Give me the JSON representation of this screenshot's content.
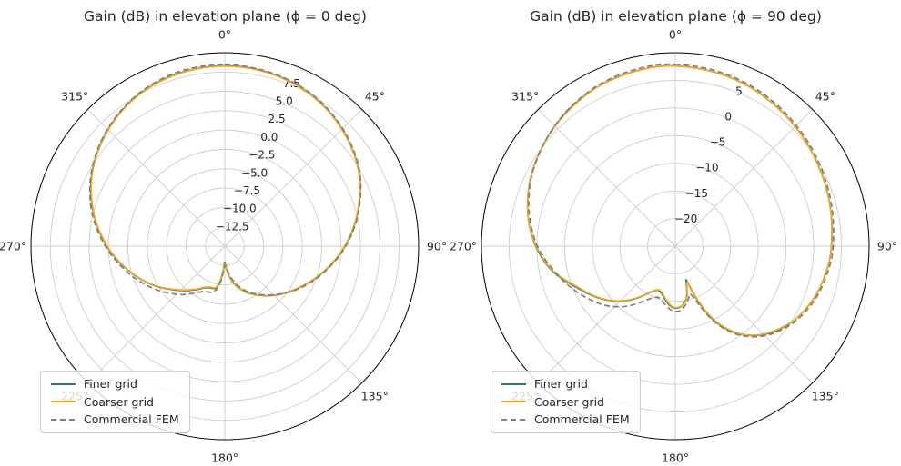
{
  "chart_data": [
    {
      "type": "line",
      "projection": "polar",
      "title": "Gain (dB) in elevation plane (ϕ = 0 deg)",
      "theta_zero": "top",
      "theta_direction": "clockwise",
      "theta_tick_labels": [
        "0°",
        "45°",
        "90°",
        "135°",
        "180°",
        "225°",
        "270°",
        "315°"
      ],
      "r_min": -15,
      "r_max": 10,
      "r_ticks": [
        7.5,
        5.0,
        2.5,
        0.0,
        -2.5,
        -5.0,
        -7.5,
        -10.0,
        -12.5
      ],
      "r_tick_labels": [
        "7.5",
        "5.0",
        "2.5",
        "0.0",
        "−2.5",
        "−5.0",
        "−7.5",
        "−10.0",
        "−12.5"
      ],
      "r_label_angle_deg": 22.5,
      "grid_color": "#cccccc",
      "spine_color": "#000000",
      "legend_position": "lower left",
      "series": [
        {
          "name": "Finer grid",
          "color": "#2f7d63",
          "dash": null,
          "points": [
            [
              0,
              8.3
            ],
            [
              15,
              8.1
            ],
            [
              30,
              7.5
            ],
            [
              45,
              6.4
            ],
            [
              60,
              4.9
            ],
            [
              75,
              2.8
            ],
            [
              90,
              0.5
            ],
            [
              105,
              -1.9
            ],
            [
              120,
              -4.1
            ],
            [
              135,
              -6.0
            ],
            [
              150,
              -7.8
            ],
            [
              160,
              -9.1
            ],
            [
              168,
              -10.3
            ],
            [
              174,
              -11.6
            ],
            [
              178,
              -12.5
            ],
            [
              181,
              -12.9
            ],
            [
              184,
              -11.7
            ],
            [
              188,
              -10.2
            ],
            [
              193,
              -9.4
            ],
            [
              199,
              -9.3
            ],
            [
              206,
              -9.0
            ],
            [
              214,
              -8.2
            ],
            [
              225,
              -6.9
            ],
            [
              240,
              -4.7
            ],
            [
              255,
              -2.3
            ],
            [
              270,
              0.2
            ],
            [
              285,
              2.6
            ],
            [
              300,
              4.7
            ],
            [
              315,
              6.3
            ],
            [
              330,
              7.5
            ],
            [
              345,
              8.1
            ]
          ]
        },
        {
          "name": "Coarser grid",
          "color": "#f5a623",
          "dash": null,
          "points": [
            [
              0,
              8.25
            ],
            [
              15,
              8.05
            ],
            [
              30,
              7.45
            ],
            [
              45,
              6.35
            ],
            [
              60,
              4.85
            ],
            [
              75,
              2.75
            ],
            [
              90,
              0.45
            ],
            [
              105,
              -1.95
            ],
            [
              120,
              -4.15
            ],
            [
              135,
              -6.05
            ],
            [
              150,
              -7.85
            ],
            [
              160,
              -9.15
            ],
            [
              168,
              -10.4
            ],
            [
              174,
              -11.7
            ],
            [
              178,
              -12.6
            ],
            [
              181,
              -12.7
            ],
            [
              184,
              -11.9
            ],
            [
              188,
              -10.4
            ],
            [
              193,
              -9.5
            ],
            [
              199,
              -9.4
            ],
            [
              206,
              -9.1
            ],
            [
              214,
              -8.3
            ],
            [
              225,
              -7.0
            ],
            [
              240,
              -4.75
            ],
            [
              255,
              -2.35
            ],
            [
              270,
              0.15
            ],
            [
              285,
              2.55
            ],
            [
              300,
              4.65
            ],
            [
              315,
              6.25
            ],
            [
              330,
              7.45
            ],
            [
              345,
              8.05
            ]
          ]
        },
        {
          "name": "Commercial FEM",
          "color": "#7f7f7f",
          "dash": [
            6,
            3.5
          ],
          "points": [
            [
              0,
              8.45
            ],
            [
              15,
              8.2
            ],
            [
              30,
              7.6
            ],
            [
              45,
              6.5
            ],
            [
              60,
              5.0
            ],
            [
              75,
              2.9
            ],
            [
              90,
              0.6
            ],
            [
              105,
              -1.8
            ],
            [
              120,
              -4.0
            ],
            [
              135,
              -6.1
            ],
            [
              150,
              -8.0
            ],
            [
              160,
              -9.4
            ],
            [
              168,
              -10.7
            ],
            [
              174,
              -11.9
            ],
            [
              179,
              -12.6
            ],
            [
              183,
              -11.7
            ],
            [
              188,
              -9.9
            ],
            [
              194,
              -8.9
            ],
            [
              200,
              -8.7
            ],
            [
              207,
              -8.4
            ],
            [
              215,
              -7.5
            ],
            [
              225,
              -6.2
            ],
            [
              240,
              -4.2
            ],
            [
              255,
              -2.0
            ],
            [
              270,
              0.4
            ],
            [
              285,
              2.8
            ],
            [
              300,
              4.8
            ],
            [
              315,
              6.4
            ],
            [
              330,
              7.6
            ],
            [
              345,
              8.3
            ]
          ]
        }
      ]
    },
    {
      "type": "line",
      "projection": "polar",
      "title": "Gain (dB) in elevation plane (ϕ = 90 deg)",
      "theta_zero": "top",
      "theta_direction": "clockwise",
      "theta_tick_labels": [
        "0°",
        "45°",
        "90°",
        "135°",
        "180°",
        "225°",
        "270°",
        "315°"
      ],
      "r_min": -25,
      "r_max": 10,
      "r_ticks": [
        5,
        0,
        -5,
        -10,
        -15,
        -20
      ],
      "r_tick_labels": [
        "5",
        "0",
        "−5",
        "−10",
        "−15",
        "−20"
      ],
      "r_label_angle_deg": 22.5,
      "grid_color": "#cccccc",
      "spine_color": "#000000",
      "legend_position": "lower left",
      "series": [
        {
          "name": "Finer grid",
          "color": "#2f7d63",
          "dash": null,
          "points": [
            [
              0,
              7.6
            ],
            [
              15,
              7.2
            ],
            [
              30,
              6.5
            ],
            [
              45,
              5.6
            ],
            [
              60,
              4.7
            ],
            [
              75,
              3.9
            ],
            [
              90,
              3.2
            ],
            [
              100,
              2.6
            ],
            [
              110,
              1.8
            ],
            [
              120,
              0.6
            ],
            [
              128,
              -0.8
            ],
            [
              135,
              -2.4
            ],
            [
              142,
              -4.6
            ],
            [
              148,
              -7.2
            ],
            [
              153,
              -10.2
            ],
            [
              157,
              -13.6
            ],
            [
              160,
              -16.8
            ],
            [
              162,
              -18.6
            ],
            [
              164,
              -17.6
            ],
            [
              167,
              -15.8
            ],
            [
              171,
              -14.6
            ],
            [
              176,
              -13.9
            ],
            [
              181,
              -13.8
            ],
            [
              186,
              -14.3
            ],
            [
              192,
              -15.4
            ],
            [
              197,
              -16.2
            ],
            [
              202,
              -16.4
            ],
            [
              208,
              -15.6
            ],
            [
              214,
              -14.0
            ],
            [
              221,
              -12.0
            ],
            [
              229,
              -9.9
            ],
            [
              238,
              -7.8
            ],
            [
              248,
              -5.5
            ],
            [
              258,
              -2.5
            ],
            [
              268,
              -0.2
            ],
            [
              278,
              1.6
            ],
            [
              288,
              3.0
            ],
            [
              298,
              4.2
            ],
            [
              310,
              5.3
            ],
            [
              322,
              6.3
            ],
            [
              335,
              7.1
            ],
            [
              348,
              7.5
            ]
          ]
        },
        {
          "name": "Coarser grid",
          "color": "#f5a623",
          "dash": null,
          "points": [
            [
              0,
              7.6
            ],
            [
              15,
              7.2
            ],
            [
              30,
              6.5
            ],
            [
              45,
              5.6
            ],
            [
              60,
              4.7
            ],
            [
              75,
              3.9
            ],
            [
              90,
              3.2
            ],
            [
              100,
              2.6
            ],
            [
              110,
              1.8
            ],
            [
              120,
              0.6
            ],
            [
              128,
              -0.9
            ],
            [
              135,
              -2.5
            ],
            [
              142,
              -4.7
            ],
            [
              148,
              -7.4
            ],
            [
              153,
              -10.5
            ],
            [
              157,
              -14.0
            ],
            [
              160,
              -17.2
            ],
            [
              162,
              -18.2
            ],
            [
              164,
              -17.3
            ],
            [
              167,
              -15.6
            ],
            [
              171,
              -14.5
            ],
            [
              176,
              -14.0
            ],
            [
              181,
              -13.9
            ],
            [
              186,
              -14.5
            ],
            [
              192,
              -15.6
            ],
            [
              197,
              -16.4
            ],
            [
              202,
              -16.5
            ],
            [
              208,
              -15.7
            ],
            [
              214,
              -14.1
            ],
            [
              221,
              -12.1
            ],
            [
              229,
              -10.0
            ],
            [
              238,
              -7.9
            ],
            [
              248,
              -5.7
            ],
            [
              258,
              -2.6
            ],
            [
              268,
              -0.3
            ],
            [
              278,
              1.6
            ],
            [
              288,
              3.0
            ],
            [
              298,
              4.2
            ],
            [
              310,
              5.3
            ],
            [
              322,
              6.2
            ],
            [
              335,
              7.1
            ],
            [
              348,
              7.5
            ]
          ]
        },
        {
          "name": "Commercial FEM",
          "color": "#7f7f7f",
          "dash": [
            6,
            3.5
          ],
          "points": [
            [
              0,
              7.9
            ],
            [
              15,
              7.5
            ],
            [
              30,
              6.8
            ],
            [
              45,
              5.9
            ],
            [
              60,
              5.0
            ],
            [
              75,
              4.2
            ],
            [
              90,
              3.5
            ],
            [
              100,
              2.9
            ],
            [
              110,
              2.1
            ],
            [
              120,
              0.9
            ],
            [
              128,
              -0.5
            ],
            [
              135,
              -2.1
            ],
            [
              142,
              -4.3
            ],
            [
              148,
              -6.9
            ],
            [
              153,
              -9.8
            ],
            [
              157,
              -12.8
            ],
            [
              160,
              -14.9
            ],
            [
              163,
              -16.0
            ],
            [
              166,
              -15.2
            ],
            [
              170,
              -14.2
            ],
            [
              176,
              -13.3
            ],
            [
              181,
              -13.2
            ],
            [
              186,
              -13.7
            ],
            [
              192,
              -14.6
            ],
            [
              197,
              -15.2
            ],
            [
              202,
              -15.0
            ],
            [
              208,
              -14.0
            ],
            [
              214,
              -12.4
            ],
            [
              221,
              -10.5
            ],
            [
              229,
              -8.6
            ],
            [
              238,
              -6.8
            ],
            [
              248,
              -4.8
            ],
            [
              258,
              -2.8
            ],
            [
              268,
              -0.5
            ],
            [
              278,
              1.3
            ],
            [
              288,
              2.8
            ],
            [
              298,
              4.1
            ],
            [
              310,
              5.3
            ],
            [
              322,
              6.4
            ],
            [
              335,
              7.3
            ],
            [
              348,
              7.8
            ]
          ]
        }
      ]
    }
  ]
}
